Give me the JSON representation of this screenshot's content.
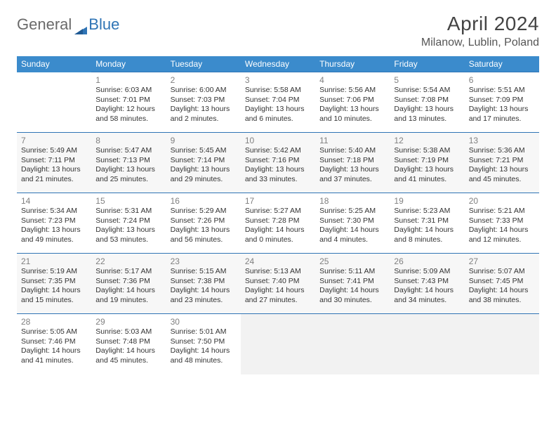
{
  "logo": {
    "text1": "General",
    "text2": "Blue"
  },
  "title": {
    "month": "April 2024",
    "location": "Milanow, Lublin, Poland"
  },
  "colors": {
    "header_bg": "#3b8bcc",
    "border": "#2f74b5",
    "daynum": "#808080",
    "text": "#333333",
    "shade": "#f7f7f7",
    "empty_tail": "#f2f2f2",
    "logo_blue": "#2f74b5",
    "logo_gray": "#6a6a6a"
  },
  "weekdays": [
    "Sunday",
    "Monday",
    "Tuesday",
    "Wednesday",
    "Thursday",
    "Friday",
    "Saturday"
  ],
  "weeks": [
    {
      "shade": false,
      "days": [
        {
          "empty": true,
          "lead": true
        },
        {
          "num": "1",
          "lines": [
            "Sunrise: 6:03 AM",
            "Sunset: 7:01 PM",
            "Daylight: 12 hours and 58 minutes."
          ]
        },
        {
          "num": "2",
          "lines": [
            "Sunrise: 6:00 AM",
            "Sunset: 7:03 PM",
            "Daylight: 13 hours and 2 minutes."
          ]
        },
        {
          "num": "3",
          "lines": [
            "Sunrise: 5:58 AM",
            "Sunset: 7:04 PM",
            "Daylight: 13 hours and 6 minutes."
          ]
        },
        {
          "num": "4",
          "lines": [
            "Sunrise: 5:56 AM",
            "Sunset: 7:06 PM",
            "Daylight: 13 hours and 10 minutes."
          ]
        },
        {
          "num": "5",
          "lines": [
            "Sunrise: 5:54 AM",
            "Sunset: 7:08 PM",
            "Daylight: 13 hours and 13 minutes."
          ]
        },
        {
          "num": "6",
          "lines": [
            "Sunrise: 5:51 AM",
            "Sunset: 7:09 PM",
            "Daylight: 13 hours and 17 minutes."
          ]
        }
      ]
    },
    {
      "shade": true,
      "days": [
        {
          "num": "7",
          "lines": [
            "Sunrise: 5:49 AM",
            "Sunset: 7:11 PM",
            "Daylight: 13 hours and 21 minutes."
          ]
        },
        {
          "num": "8",
          "lines": [
            "Sunrise: 5:47 AM",
            "Sunset: 7:13 PM",
            "Daylight: 13 hours and 25 minutes."
          ]
        },
        {
          "num": "9",
          "lines": [
            "Sunrise: 5:45 AM",
            "Sunset: 7:14 PM",
            "Daylight: 13 hours and 29 minutes."
          ]
        },
        {
          "num": "10",
          "lines": [
            "Sunrise: 5:42 AM",
            "Sunset: 7:16 PM",
            "Daylight: 13 hours and 33 minutes."
          ]
        },
        {
          "num": "11",
          "lines": [
            "Sunrise: 5:40 AM",
            "Sunset: 7:18 PM",
            "Daylight: 13 hours and 37 minutes."
          ]
        },
        {
          "num": "12",
          "lines": [
            "Sunrise: 5:38 AM",
            "Sunset: 7:19 PM",
            "Daylight: 13 hours and 41 minutes."
          ]
        },
        {
          "num": "13",
          "lines": [
            "Sunrise: 5:36 AM",
            "Sunset: 7:21 PM",
            "Daylight: 13 hours and 45 minutes."
          ]
        }
      ]
    },
    {
      "shade": false,
      "days": [
        {
          "num": "14",
          "lines": [
            "Sunrise: 5:34 AM",
            "Sunset: 7:23 PM",
            "Daylight: 13 hours and 49 minutes."
          ]
        },
        {
          "num": "15",
          "lines": [
            "Sunrise: 5:31 AM",
            "Sunset: 7:24 PM",
            "Daylight: 13 hours and 53 minutes."
          ]
        },
        {
          "num": "16",
          "lines": [
            "Sunrise: 5:29 AM",
            "Sunset: 7:26 PM",
            "Daylight: 13 hours and 56 minutes."
          ]
        },
        {
          "num": "17",
          "lines": [
            "Sunrise: 5:27 AM",
            "Sunset: 7:28 PM",
            "Daylight: 14 hours and 0 minutes."
          ]
        },
        {
          "num": "18",
          "lines": [
            "Sunrise: 5:25 AM",
            "Sunset: 7:30 PM",
            "Daylight: 14 hours and 4 minutes."
          ]
        },
        {
          "num": "19",
          "lines": [
            "Sunrise: 5:23 AM",
            "Sunset: 7:31 PM",
            "Daylight: 14 hours and 8 minutes."
          ]
        },
        {
          "num": "20",
          "lines": [
            "Sunrise: 5:21 AM",
            "Sunset: 7:33 PM",
            "Daylight: 14 hours and 12 minutes."
          ]
        }
      ]
    },
    {
      "shade": true,
      "days": [
        {
          "num": "21",
          "lines": [
            "Sunrise: 5:19 AM",
            "Sunset: 7:35 PM",
            "Daylight: 14 hours and 15 minutes."
          ]
        },
        {
          "num": "22",
          "lines": [
            "Sunrise: 5:17 AM",
            "Sunset: 7:36 PM",
            "Daylight: 14 hours and 19 minutes."
          ]
        },
        {
          "num": "23",
          "lines": [
            "Sunrise: 5:15 AM",
            "Sunset: 7:38 PM",
            "Daylight: 14 hours and 23 minutes."
          ]
        },
        {
          "num": "24",
          "lines": [
            "Sunrise: 5:13 AM",
            "Sunset: 7:40 PM",
            "Daylight: 14 hours and 27 minutes."
          ]
        },
        {
          "num": "25",
          "lines": [
            "Sunrise: 5:11 AM",
            "Sunset: 7:41 PM",
            "Daylight: 14 hours and 30 minutes."
          ]
        },
        {
          "num": "26",
          "lines": [
            "Sunrise: 5:09 AM",
            "Sunset: 7:43 PM",
            "Daylight: 14 hours and 34 minutes."
          ]
        },
        {
          "num": "27",
          "lines": [
            "Sunrise: 5:07 AM",
            "Sunset: 7:45 PM",
            "Daylight: 14 hours and 38 minutes."
          ]
        }
      ]
    },
    {
      "shade": false,
      "days": [
        {
          "num": "28",
          "lines": [
            "Sunrise: 5:05 AM",
            "Sunset: 7:46 PM",
            "Daylight: 14 hours and 41 minutes."
          ]
        },
        {
          "num": "29",
          "lines": [
            "Sunrise: 5:03 AM",
            "Sunset: 7:48 PM",
            "Daylight: 14 hours and 45 minutes."
          ]
        },
        {
          "num": "30",
          "lines": [
            "Sunrise: 5:01 AM",
            "Sunset: 7:50 PM",
            "Daylight: 14 hours and 48 minutes."
          ]
        },
        {
          "empty": true,
          "lead": false
        },
        {
          "empty": true,
          "lead": false
        },
        {
          "empty": true,
          "lead": false
        },
        {
          "empty": true,
          "lead": false
        }
      ]
    }
  ]
}
